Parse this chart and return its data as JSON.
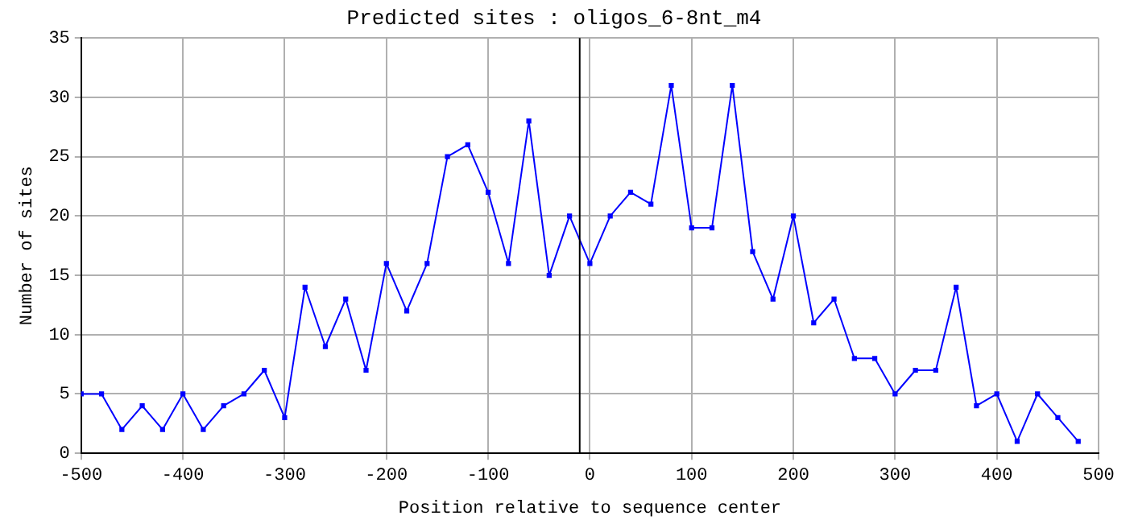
{
  "chart_data": {
    "type": "line",
    "title": "Predicted sites : oligos_6-8nt_m4",
    "xlabel": "Position relative to sequence center",
    "ylabel": "Number of sites",
    "x": [
      -500,
      -480,
      -460,
      -440,
      -420,
      -400,
      -380,
      -360,
      -340,
      -320,
      -300,
      -280,
      -260,
      -240,
      -220,
      -200,
      -180,
      -160,
      -140,
      -120,
      -100,
      -80,
      -60,
      -40,
      -20,
      0,
      20,
      40,
      60,
      80,
      100,
      120,
      140,
      160,
      180,
      200,
      220,
      240,
      260,
      280,
      300,
      320,
      340,
      360,
      380,
      400,
      420,
      440,
      460,
      480
    ],
    "series": [
      {
        "color": "#0000ff",
        "values": [
          5,
          5,
          2,
          4,
          2,
          5,
          2,
          4,
          5,
          7,
          3,
          14,
          9,
          13,
          7,
          16,
          12,
          16,
          25,
          26,
          22,
          16,
          28,
          15,
          20,
          16,
          20,
          22,
          21,
          31,
          19,
          19,
          31,
          17,
          13,
          20,
          11,
          13,
          8,
          8,
          5,
          7,
          7,
          14,
          4,
          5,
          1,
          5,
          3,
          1
        ]
      }
    ],
    "xlim": [
      -500,
      500
    ],
    "xticks": [
      -500,
      -400,
      -300,
      -200,
      -100,
      0,
      100,
      200,
      300,
      400,
      500
    ],
    "ylim": [
      0,
      35
    ],
    "yticks": [
      0,
      5,
      10,
      15,
      20,
      25,
      30,
      35
    ],
    "ref_lines": [
      {
        "axis": "x",
        "value": -10,
        "color": "#000000"
      }
    ],
    "grid": true,
    "legend": false,
    "marker": "square",
    "line_style": "solid"
  }
}
